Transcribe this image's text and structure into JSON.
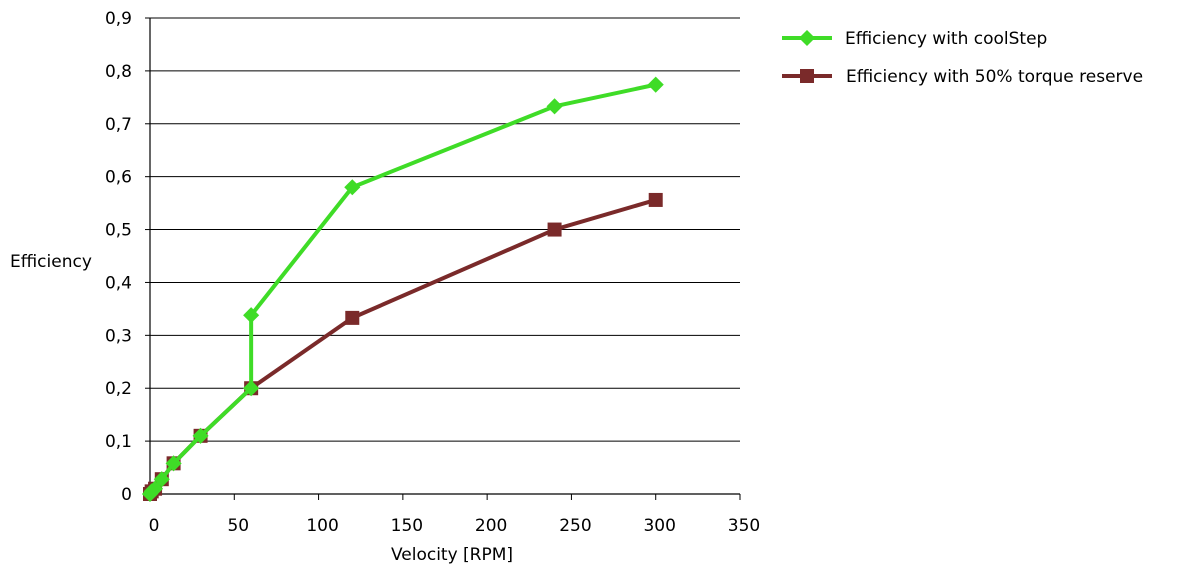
{
  "chart_data": {
    "type": "line",
    "title": "",
    "xlabel": "Velocity [RPM]",
    "ylabel": "Efficiency",
    "xlim": [
      0,
      350
    ],
    "ylim": [
      0,
      0.9
    ],
    "x_ticks": [
      {
        "value": 0,
        "label": "0"
      },
      {
        "value": 50,
        "label": "50"
      },
      {
        "value": 100,
        "label": "100"
      },
      {
        "value": 150,
        "label": "150"
      },
      {
        "value": 200,
        "label": "200"
      },
      {
        "value": 250,
        "label": "250"
      },
      {
        "value": 300,
        "label": "300"
      },
      {
        "value": 350,
        "label": "350"
      }
    ],
    "y_ticks": [
      {
        "value": 0,
        "label": "0"
      },
      {
        "value": 0.1,
        "label": "0,1"
      },
      {
        "value": 0.2,
        "label": "0,2"
      },
      {
        "value": 0.3,
        "label": "0,3"
      },
      {
        "value": 0.4,
        "label": "0,4"
      },
      {
        "value": 0.5,
        "label": "0,5"
      },
      {
        "value": 0.6,
        "label": "0,6"
      },
      {
        "value": 0.7,
        "label": "0,7"
      },
      {
        "value": 0.8,
        "label": "0,8"
      },
      {
        "value": 0.9,
        "label": "0,9"
      }
    ],
    "grid": "horizontal",
    "legend_position": "top-right",
    "series": [
      {
        "name": "Efficiency with coolStep",
        "color": "#3fdc27",
        "marker": "diamond",
        "points": [
          {
            "x": 0,
            "y": 0
          },
          {
            "x": 1,
            "y": 0.005
          },
          {
            "x": 3,
            "y": 0.01
          },
          {
            "x": 7,
            "y": 0.028
          },
          {
            "x": 14,
            "y": 0.058
          },
          {
            "x": 30,
            "y": 0.11
          },
          {
            "x": 60,
            "y": 0.2
          },
          {
            "x": 60,
            "y": 0.338
          },
          {
            "x": 120,
            "y": 0.58
          },
          {
            "x": 240,
            "y": 0.733
          },
          {
            "x": 300,
            "y": 0.774
          }
        ]
      },
      {
        "name": "Efficiency with 50% torque reserve",
        "color": "#7a2a2a",
        "marker": "square",
        "points": [
          {
            "x": 0,
            "y": 0
          },
          {
            "x": 1,
            "y": 0.005
          },
          {
            "x": 3,
            "y": 0.01
          },
          {
            "x": 7,
            "y": 0.028
          },
          {
            "x": 14,
            "y": 0.058
          },
          {
            "x": 30,
            "y": 0.11
          },
          {
            "x": 60,
            "y": 0.2
          },
          {
            "x": 120,
            "y": 0.333
          },
          {
            "x": 240,
            "y": 0.5
          },
          {
            "x": 300,
            "y": 0.556
          }
        ]
      }
    ]
  }
}
